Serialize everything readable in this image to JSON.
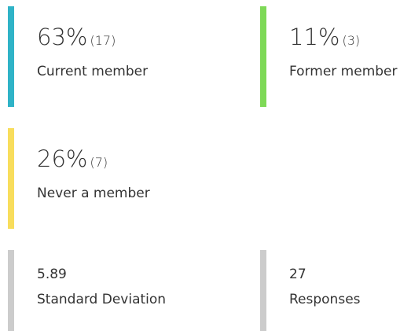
{
  "cards": [
    {
      "percent": "63%",
      "count": "(17)",
      "label": "Current member",
      "color": "#2fb3c7"
    },
    {
      "percent": "11%",
      "count": "(3)",
      "label": "Former member",
      "color": "#7ed957"
    },
    {
      "percent": "26%",
      "count": "(7)",
      "label": "Never a member",
      "color": "#f8dd5c"
    }
  ],
  "stats": [
    {
      "value": "5.89",
      "label": "Standard Deviation",
      "color": "#cccccc"
    },
    {
      "value": "27",
      "label": "Responses",
      "color": "#cccccc"
    }
  ]
}
